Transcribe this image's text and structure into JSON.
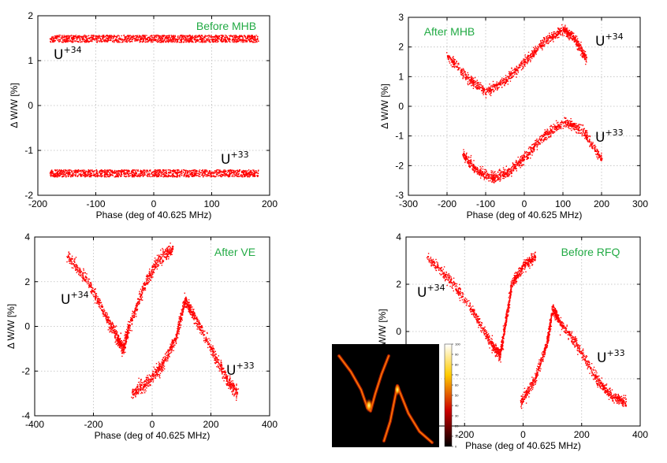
{
  "chart_data": [
    {
      "type": "scatter",
      "title": "Before MHB",
      "xlabel": "Phase (deg of 40.625 MHz)",
      "ylabel": "Δ W/W [%]",
      "xlim": [
        -200,
        200
      ],
      "ylim": [
        -2,
        2
      ],
      "xticks": [
        -200,
        -100,
        0,
        100,
        200
      ],
      "yticks": [
        -2,
        -1,
        0,
        1,
        2
      ],
      "grid": true,
      "annotation_color": "#22aa44",
      "series": [
        {
          "name": "U+34",
          "label_base": "U",
          "label_sup": "+34",
          "shape": "band",
          "x_range": [
            -180,
            180
          ],
          "center": 1.5,
          "half_width": 0.08
        },
        {
          "name": "U+33",
          "label_base": "U",
          "label_sup": "+33",
          "shape": "band",
          "x_range": [
            -180,
            180
          ],
          "center": -1.5,
          "half_width": 0.08
        }
      ]
    },
    {
      "type": "scatter",
      "title": "After MHB",
      "xlabel": "Phase (deg of 40.625 MHz)",
      "ylabel": "Δ W/W [%]",
      "xlim": [
        -300,
        300
      ],
      "ylim": [
        -3,
        3
      ],
      "xticks": [
        -300,
        -200,
        -100,
        0,
        100,
        200,
        300
      ],
      "yticks": [
        -3,
        -2,
        -1,
        0,
        1,
        2,
        3
      ],
      "grid": true,
      "annotation_color": "#22aa44",
      "series": [
        {
          "name": "U+34",
          "label_base": "U",
          "label_sup": "+34",
          "shape": "curve",
          "points": [
            [
              -200,
              1.7
            ],
            [
              -150,
              1.0
            ],
            [
              -100,
              0.5
            ],
            [
              -50,
              0.9
            ],
            [
              0,
              1.5
            ],
            [
              50,
              2.2
            ],
            [
              100,
              2.6
            ],
            [
              130,
              2.3
            ],
            [
              160,
              1.6
            ]
          ],
          "half_width": 0.15
        },
        {
          "name": "U+33",
          "label_base": "U",
          "label_sup": "+33",
          "shape": "curve",
          "points": [
            [
              -160,
              -1.6
            ],
            [
              -120,
              -2.2
            ],
            [
              -80,
              -2.4
            ],
            [
              -40,
              -2.2
            ],
            [
              0,
              -1.7
            ],
            [
              50,
              -1.0
            ],
            [
              100,
              -0.5
            ],
            [
              150,
              -0.8
            ],
            [
              200,
              -1.8
            ]
          ],
          "half_width": 0.15
        }
      ]
    },
    {
      "type": "scatter",
      "title": "After VE",
      "xlabel": "Phase (deg of 40.625 MHz)",
      "ylabel": "Δ W/W [%]",
      "xlim": [
        -400,
        400
      ],
      "ylim": [
        -4,
        4
      ],
      "xticks": [
        -400,
        -200,
        0,
        200,
        400
      ],
      "yticks": [
        -4,
        -2,
        0,
        2,
        4
      ],
      "grid": true,
      "annotation_color": "#22aa44",
      "series": [
        {
          "name": "U+34",
          "label_base": "U",
          "label_sup": "+34",
          "shape": "curve",
          "points": [
            [
              -290,
              3.2
            ],
            [
              -220,
              2.0
            ],
            [
              -160,
              0.5
            ],
            [
              -120,
              -0.5
            ],
            [
              -100,
              -1.0
            ],
            [
              -80,
              0.0
            ],
            [
              -30,
              1.8
            ],
            [
              20,
              3.0
            ],
            [
              70,
              3.5
            ]
          ],
          "half_width": 0.25
        },
        {
          "name": "U+33",
          "label_base": "U",
          "label_sup": "+33",
          "shape": "curve",
          "points": [
            [
              -70,
              -3.0
            ],
            [
              -20,
              -2.5
            ],
            [
              30,
              -1.8
            ],
            [
              80,
              -0.5
            ],
            [
              110,
              1.2
            ],
            [
              140,
              0.5
            ],
            [
              200,
              -1.0
            ],
            [
              250,
              -2.3
            ],
            [
              290,
              -3.0
            ]
          ],
          "half_width": 0.25
        }
      ]
    },
    {
      "type": "scatter",
      "title": "Before RFQ",
      "xlabel": "Phase (deg of 40.625 MHz)",
      "ylabel": "Δ W/W [%]",
      "xlim": [
        -400,
        400
      ],
      "ylim": [
        -4,
        4
      ],
      "xticks": [
        -400,
        -200,
        0,
        200,
        400
      ],
      "yticks": [
        -4,
        -2,
        0,
        2,
        4
      ],
      "grid": true,
      "annotation_color": "#22aa44",
      "series": [
        {
          "name": "U+34",
          "label_base": "U",
          "label_sup": "+34",
          "shape": "curve",
          "points": [
            [
              -330,
              3.2
            ],
            [
              -250,
              2.2
            ],
            [
              -170,
              0.8
            ],
            [
              -110,
              -0.5
            ],
            [
              -80,
              -1.0
            ],
            [
              -60,
              0.5
            ],
            [
              -40,
              2.0
            ],
            [
              0,
              2.8
            ],
            [
              40,
              3.2
            ]
          ],
          "half_width": 0.2
        },
        {
          "name": "U+33",
          "label_base": "U",
          "label_sup": "+33",
          "shape": "curve",
          "points": [
            [
              -10,
              -3.0
            ],
            [
              40,
              -2.0
            ],
            [
              80,
              -0.5
            ],
            [
              100,
              1.0
            ],
            [
              120,
              0.5
            ],
            [
              180,
              -0.5
            ],
            [
              250,
              -2.0
            ],
            [
              300,
              -2.7
            ],
            [
              350,
              -3.0
            ]
          ],
          "half_width": 0.2
        }
      ]
    }
  ],
  "inset": {
    "colormap": "hot",
    "colorbar_ticks": [
      "0",
      "10",
      "20",
      "30",
      "40",
      "50",
      "60",
      "70",
      "80",
      "90",
      "100"
    ]
  }
}
